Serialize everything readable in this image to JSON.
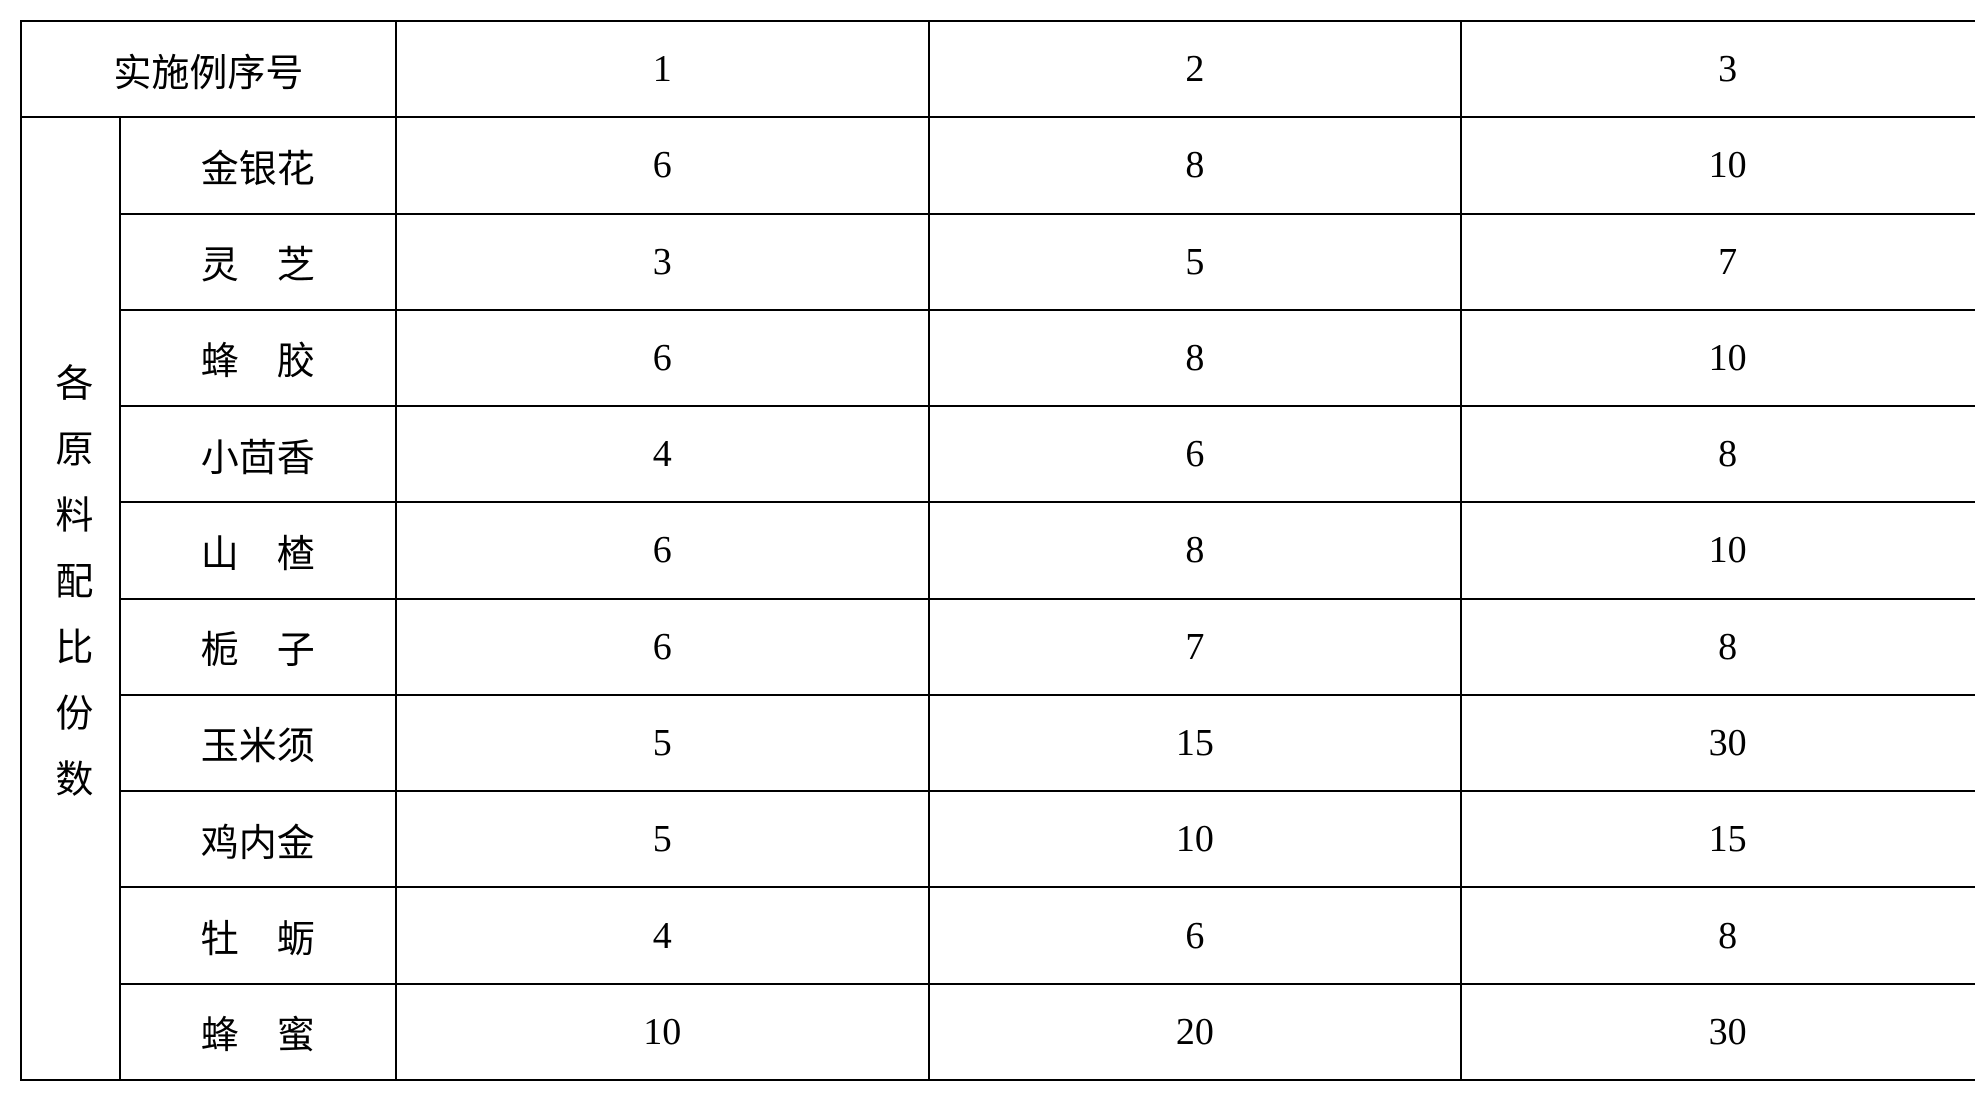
{
  "table": {
    "header_label": "实施例序号",
    "side_label": "各原料配比份数",
    "column_headers": [
      "1",
      "2",
      "3"
    ],
    "rows": [
      {
        "name": "金银花",
        "spaced": false,
        "values": [
          "6",
          "8",
          "10"
        ]
      },
      {
        "name": "灵芝",
        "spaced": true,
        "values": [
          "3",
          "5",
          "7"
        ]
      },
      {
        "name": "蜂胶",
        "spaced": true,
        "values": [
          "6",
          "8",
          "10"
        ]
      },
      {
        "name": "小茴香",
        "spaced": false,
        "values": [
          "4",
          "6",
          "8"
        ]
      },
      {
        "name": "山楂",
        "spaced": true,
        "values": [
          "6",
          "8",
          "10"
        ]
      },
      {
        "name": "栀子",
        "spaced": true,
        "values": [
          "6",
          "7",
          "8"
        ]
      },
      {
        "name": "玉米须",
        "spaced": false,
        "values": [
          "5",
          "15",
          "30"
        ]
      },
      {
        "name": "鸡内金",
        "spaced": false,
        "values": [
          "5",
          "10",
          "15"
        ]
      },
      {
        "name": "牡蛎",
        "spaced": true,
        "values": [
          "4",
          "6",
          "8"
        ]
      },
      {
        "name": "蜂蜜",
        "spaced": true,
        "values": [
          "10",
          "20",
          "30"
        ]
      }
    ],
    "border_color": "#000000",
    "text_color": "#000000",
    "background_color": "#ffffff",
    "font_size_pt": 28,
    "font_family": "SimSun"
  }
}
